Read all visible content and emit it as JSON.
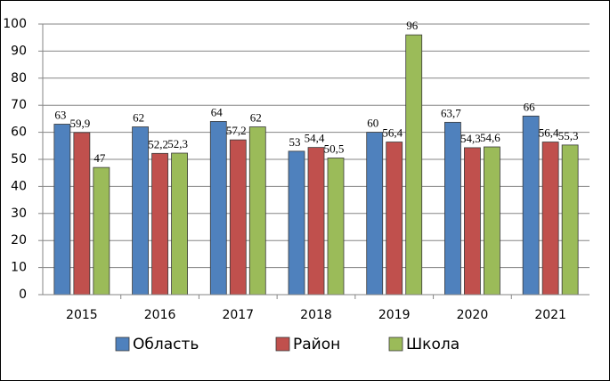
{
  "chart_data": {
    "type": "bar",
    "categories": [
      "2015",
      "2016",
      "2017",
      "2018",
      "2019",
      "2020",
      "2021"
    ],
    "series": [
      {
        "name": "Область",
        "color": "#4f81bd",
        "values": [
          63,
          62,
          64,
          53,
          60,
          63.7,
          66
        ],
        "value_labels": [
          "63",
          "62",
          "64",
          "53",
          "60",
          "63,7",
          "66"
        ]
      },
      {
        "name": "Район",
        "color": "#c0504d",
        "values": [
          59.9,
          52.2,
          57.2,
          54.4,
          56.4,
          54.3,
          56.4
        ],
        "value_labels": [
          "59,9",
          "52,2",
          "57,2",
          "54,4",
          "56,4",
          "54,3",
          "56,4"
        ]
      },
      {
        "name": "Школа",
        "color": "#9bbb59",
        "values": [
          47,
          52.3,
          62,
          50.5,
          96,
          54.6,
          55.3
        ],
        "value_labels": [
          "47",
          "52,3",
          "62",
          "50,5",
          "96",
          "54,6",
          "55,3"
        ]
      }
    ],
    "ylim": [
      0,
      100
    ],
    "yticks": [
      0,
      10,
      20,
      30,
      40,
      50,
      60,
      70,
      80,
      90,
      100
    ],
    "grid": true,
    "legend": "bottom"
  }
}
